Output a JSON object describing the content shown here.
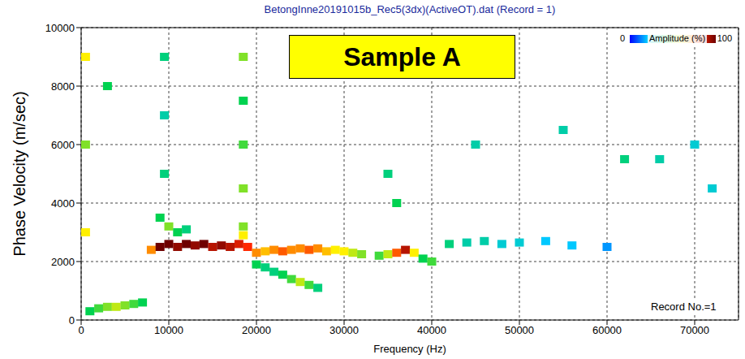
{
  "chart_data": {
    "type": "heatmap",
    "title": "BetongInne20191015b_Rec5(3dx)(ActiveOT).dat (Record = 1)",
    "x_label": "Frequency (Hz)",
    "y_label": "Phase Velocity (m/sec)",
    "xlim": [
      0,
      75000
    ],
    "xticks": [
      0,
      10000,
      20000,
      30000,
      40000,
      50000,
      60000,
      70000
    ],
    "ylim": [
      0,
      10000
    ],
    "yticks": [
      0,
      2000,
      4000,
      6000,
      8000,
      10000
    ],
    "grid": true,
    "cells": [
      [
        8000,
        2400,
        70
      ],
      [
        9000,
        2500,
        100
      ],
      [
        10000,
        2600,
        100
      ],
      [
        11000,
        2500,
        95
      ],
      [
        12000,
        2600,
        100
      ],
      [
        13000,
        2550,
        95
      ],
      [
        14000,
        2600,
        100
      ],
      [
        15000,
        2500,
        90
      ],
      [
        16000,
        2550,
        95
      ],
      [
        17000,
        2500,
        90
      ],
      [
        18000,
        2600,
        85
      ],
      [
        19000,
        2500,
        80
      ],
      [
        20000,
        2300,
        70
      ],
      [
        21000,
        2350,
        65
      ],
      [
        22000,
        2400,
        70
      ],
      [
        23000,
        2350,
        75
      ],
      [
        24000,
        2400,
        70
      ],
      [
        25000,
        2450,
        70
      ],
      [
        26000,
        2400,
        75
      ],
      [
        27000,
        2450,
        70
      ],
      [
        28000,
        2350,
        65
      ],
      [
        29000,
        2400,
        60
      ],
      [
        30000,
        2350,
        60
      ],
      [
        31000,
        2300,
        55
      ],
      [
        32000,
        2250,
        50
      ],
      [
        34000,
        2200,
        45
      ],
      [
        35000,
        2250,
        55
      ],
      [
        36000,
        2300,
        75
      ],
      [
        37000,
        2400,
        90
      ],
      [
        38000,
        2300,
        60
      ],
      [
        39000,
        2100,
        40
      ],
      [
        40000,
        2000,
        45
      ],
      [
        42000,
        2600,
        35
      ],
      [
        44000,
        2650,
        30
      ],
      [
        46000,
        2700,
        30
      ],
      [
        48000,
        2600,
        25
      ],
      [
        50000,
        2650,
        25
      ],
      [
        53000,
        2700,
        20
      ],
      [
        56000,
        2550,
        20
      ],
      [
        60000,
        2500,
        15
      ],
      [
        9000,
        3500,
        40
      ],
      [
        10000,
        3200,
        50
      ],
      [
        11000,
        3000,
        40
      ],
      [
        12000,
        3100,
        35
      ],
      [
        18500,
        3200,
        50
      ],
      [
        18500,
        2900,
        60
      ],
      [
        1000,
        300,
        40
      ],
      [
        2000,
        400,
        45
      ],
      [
        3000,
        450,
        50
      ],
      [
        4000,
        450,
        55
      ],
      [
        5000,
        500,
        50
      ],
      [
        6000,
        550,
        45
      ],
      [
        7000,
        600,
        40
      ],
      [
        20000,
        1900,
        40
      ],
      [
        21000,
        1800,
        35
      ],
      [
        22000,
        1650,
        35
      ],
      [
        23000,
        1550,
        40
      ],
      [
        24000,
        1400,
        45
      ],
      [
        25000,
        1300,
        55
      ],
      [
        26000,
        1200,
        45
      ],
      [
        27000,
        1100,
        35
      ],
      [
        18500,
        4500,
        50
      ],
      [
        18500,
        6000,
        45
      ],
      [
        18500,
        7500,
        40
      ],
      [
        18500,
        9000,
        50
      ],
      [
        9500,
        5000,
        35
      ],
      [
        9500,
        7000,
        30
      ],
      [
        9500,
        9000,
        35
      ],
      [
        500,
        3000,
        60
      ],
      [
        500,
        6000,
        50
      ],
      [
        500,
        9000,
        60
      ],
      [
        3000,
        8000,
        40
      ],
      [
        36000,
        4000,
        40
      ],
      [
        35000,
        5000,
        35
      ],
      [
        45000,
        6000,
        30
      ],
      [
        55000,
        6500,
        30
      ],
      [
        62000,
        5500,
        35
      ],
      [
        66000,
        5500,
        30
      ],
      [
        70000,
        6000,
        25
      ],
      [
        72000,
        4500,
        25
      ]
    ],
    "colorbar": {
      "label": "Amplitude (%)",
      "range": [
        0,
        100
      ],
      "ticks": [
        0,
        100
      ]
    },
    "annotations": [
      "Sample A",
      "Record No.=1"
    ]
  }
}
